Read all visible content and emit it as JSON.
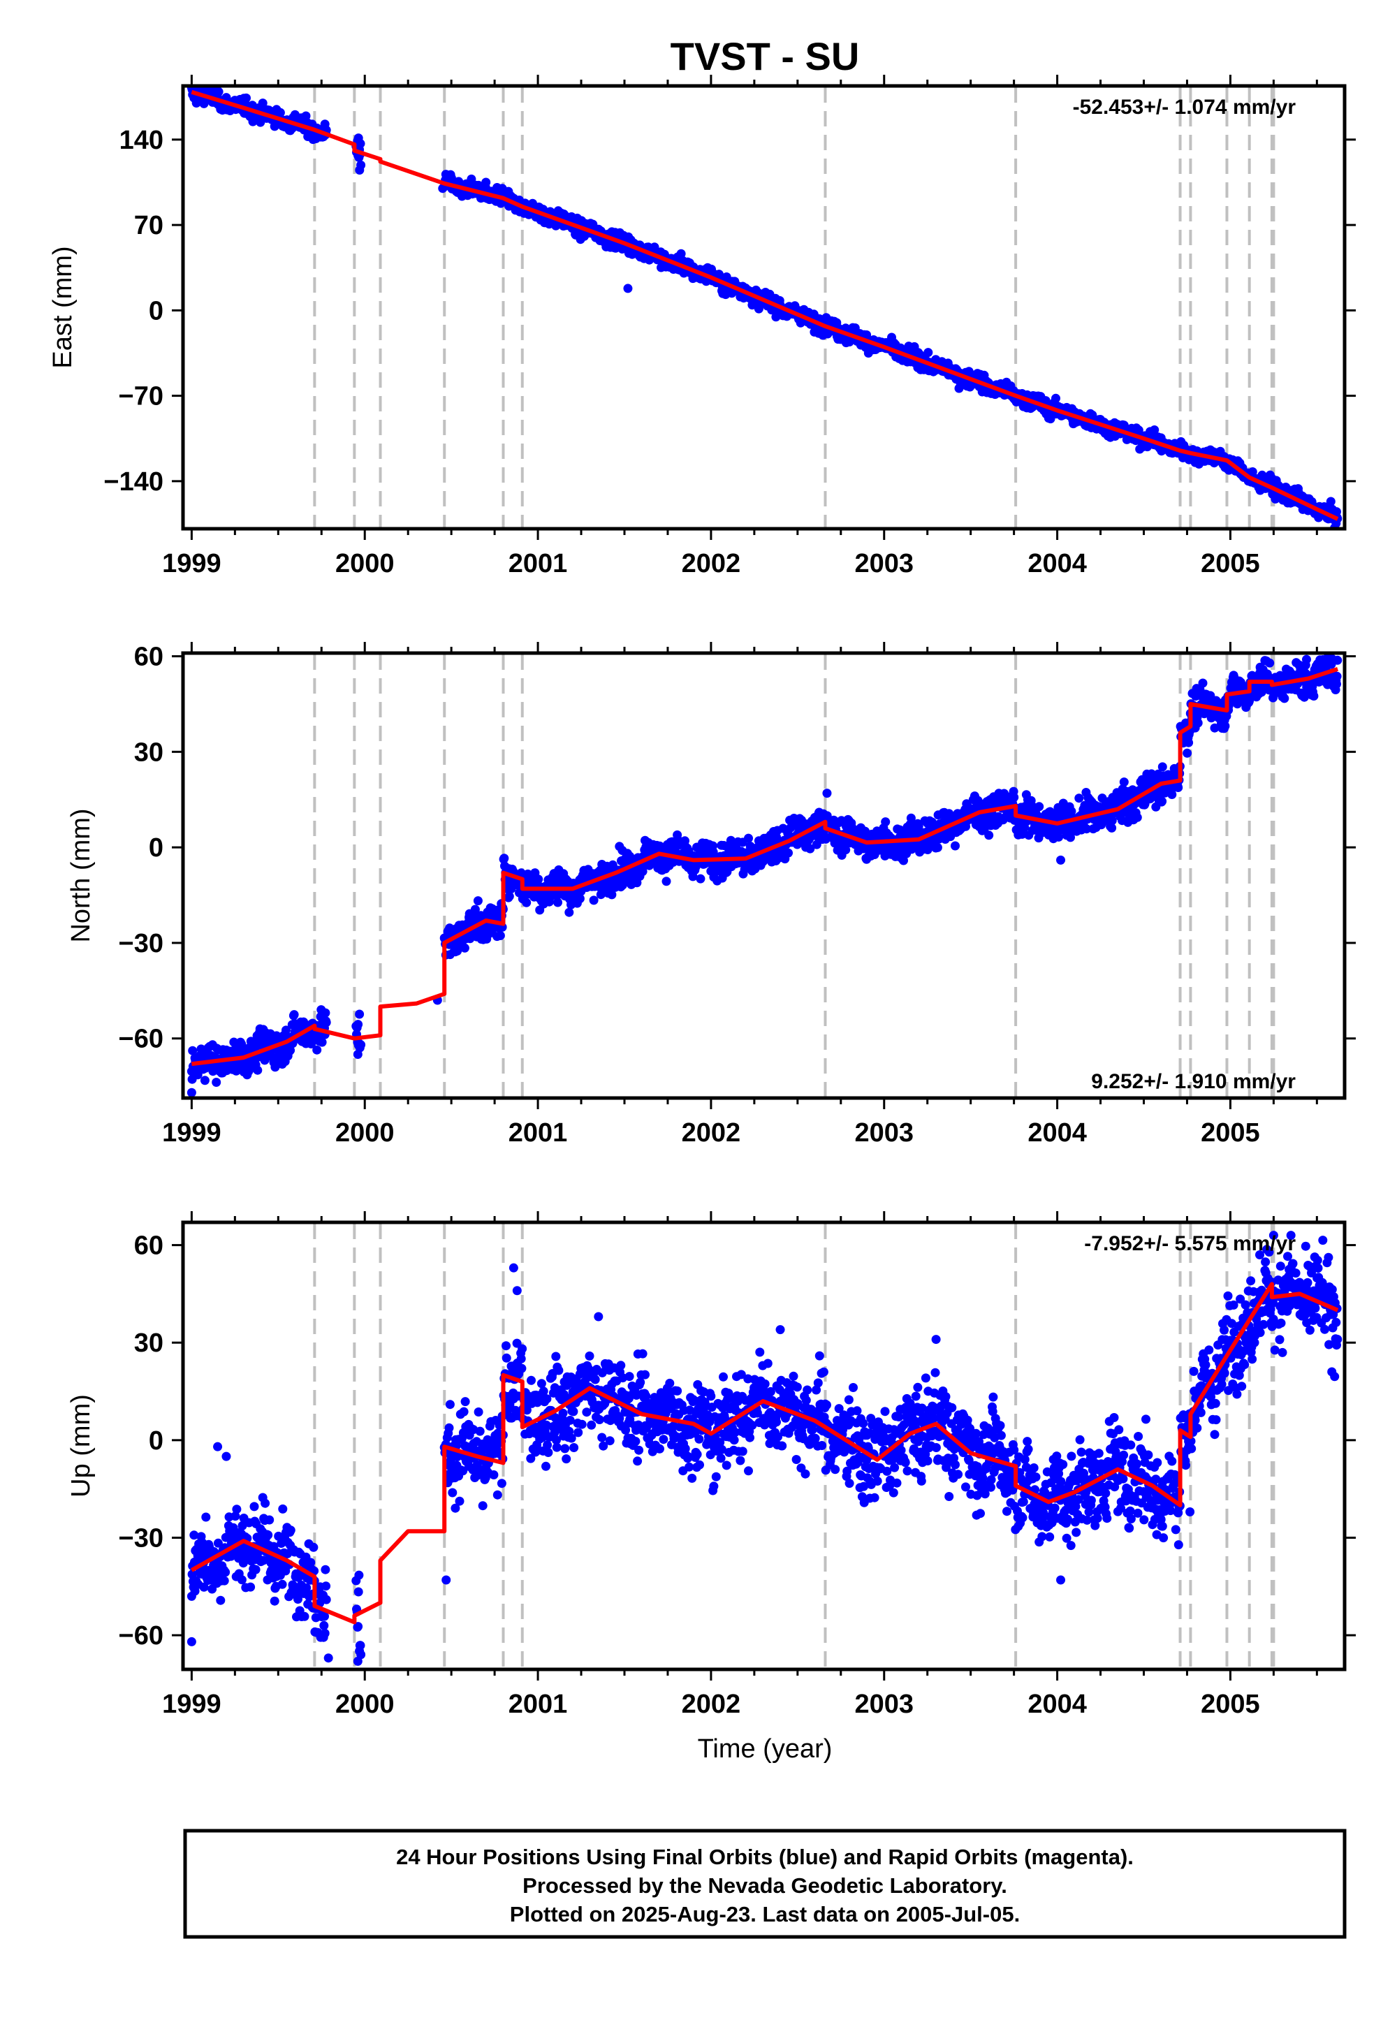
{
  "title": "TVST - SU",
  "x_axis_label": "Time (year)",
  "footer": {
    "line1": "24 Hour Positions Using Final Orbits (blue) and Rapid Orbits (magenta).",
    "line2": "Processed by the Nevada Geodetic Laboratory.",
    "line3": "Plotted on 2025-Aug-23. Last data on 2005-Jul-05."
  },
  "colors": {
    "data": "#0000ff",
    "model": "#ff0000",
    "event_line": "#c0c0c0",
    "frame": "#000000"
  },
  "chart_data": [
    {
      "type": "scatter",
      "panel": "east",
      "title": "TVST - SU",
      "xlabel": "",
      "ylabel": "East (mm)",
      "rate_text": "-52.453+/- 1.074 mm/yr",
      "rate_position": "top-right",
      "xlim": [
        1998.95,
        2005.66
      ],
      "ylim": [
        -179,
        184
      ],
      "xticks": [
        1999,
        2000,
        2001,
        2002,
        2003,
        2004,
        2005
      ],
      "yticks": [
        140,
        70,
        0,
        -70,
        -140
      ],
      "ytick_labels": [
        "140",
        "70",
        "0",
        "−70",
        "−140"
      ],
      "event_lines": [
        1999.71,
        1999.94,
        2000.09,
        2000.46,
        2000.8,
        2000.91,
        2002.66,
        2003.76,
        2004.71,
        2004.77,
        2004.98,
        2005.11,
        2005.24,
        2005.25
      ],
      "model": [
        [
          1999.0,
          179
        ],
        [
          1999.3,
          166
        ],
        [
          1999.71,
          148
        ],
        [
          1999.94,
          136
        ],
        [
          1999.94,
          131
        ],
        [
          2000.09,
          124
        ],
        [
          2000.09,
          122
        ],
        [
          2000.46,
          104
        ],
        [
          2000.8,
          92
        ],
        [
          2000.91,
          85
        ],
        [
          2001.5,
          55
        ],
        [
          2002.0,
          27
        ],
        [
          2002.66,
          -13
        ],
        [
          2003.0,
          -30
        ],
        [
          2003.76,
          -70
        ],
        [
          2004.0,
          -82
        ],
        [
          2004.5,
          -105
        ],
        [
          2004.71,
          -115
        ],
        [
          2004.77,
          -117
        ],
        [
          2004.98,
          -123
        ],
        [
          2005.11,
          -137
        ],
        [
          2005.25,
          -146
        ],
        [
          2005.5,
          -163
        ],
        [
          2005.62,
          -171
        ]
      ],
      "series": [
        {
          "name": "Final Orbits",
          "segments": [
            {
              "t0": 1999.0,
              "t1": 1999.78,
              "spread": 3.2,
              "jitter": 0
            },
            {
              "t0": 1999.95,
              "t1": 1999.98,
              "spread": 7,
              "jitter": 0
            },
            {
              "t0": 2000.46,
              "t1": 2005.62,
              "spread": 3.2,
              "jitter": 0
            }
          ],
          "outliers": [
            [
              1999.97,
              115
            ],
            [
              2000.45,
              100
            ],
            [
              2001.52,
              18
            ],
            [
              2000.7,
              105
            ],
            [
              2002.1,
              17
            ]
          ]
        }
      ]
    },
    {
      "type": "scatter",
      "panel": "north",
      "xlabel": "",
      "ylabel": "North (mm)",
      "rate_text": "9.252+/- 1.910 mm/yr",
      "rate_position": "bottom-right",
      "xlim": [
        1998.95,
        2005.66
      ],
      "ylim": [
        -78.7,
        61
      ],
      "xticks": [
        1999,
        2000,
        2001,
        2002,
        2003,
        2004,
        2005
      ],
      "yticks": [
        60,
        30,
        0,
        -30,
        -60
      ],
      "ytick_labels": [
        "60",
        "30",
        "0",
        "−30",
        "−60"
      ],
      "event_lines": [
        1999.71,
        1999.94,
        2000.09,
        2000.46,
        2000.8,
        2000.91,
        2002.66,
        2003.76,
        2004.71,
        2004.77,
        2004.98,
        2005.11,
        2005.24,
        2005.25
      ],
      "model": [
        [
          1999.0,
          -68
        ],
        [
          1999.3,
          -66
        ],
        [
          1999.55,
          -61
        ],
        [
          1999.71,
          -56
        ],
        [
          1999.71,
          -57
        ],
        [
          1999.94,
          -60
        ],
        [
          2000.09,
          -59
        ],
        [
          2000.09,
          -50
        ],
        [
          2000.3,
          -49
        ],
        [
          2000.46,
          -46
        ],
        [
          2000.46,
          -30
        ],
        [
          2000.7,
          -23
        ],
        [
          2000.8,
          -24
        ],
        [
          2000.8,
          -8
        ],
        [
          2000.91,
          -10
        ],
        [
          2000.91,
          -13
        ],
        [
          2001.2,
          -13
        ],
        [
          2001.45,
          -8
        ],
        [
          2001.7,
          -2
        ],
        [
          2001.9,
          -4
        ],
        [
          2002.2,
          -3.5
        ],
        [
          2002.45,
          2
        ],
        [
          2002.66,
          8
        ],
        [
          2002.66,
          6
        ],
        [
          2002.9,
          1.5
        ],
        [
          2003.2,
          2.5
        ],
        [
          2003.55,
          11
        ],
        [
          2003.76,
          13
        ],
        [
          2003.76,
          10
        ],
        [
          2004.0,
          7.5
        ],
        [
          2004.35,
          12
        ],
        [
          2004.6,
          20
        ],
        [
          2004.71,
          21
        ],
        [
          2004.71,
          36
        ],
        [
          2004.77,
          38
        ],
        [
          2004.77,
          45
        ],
        [
          2004.98,
          43
        ],
        [
          2004.98,
          48
        ],
        [
          2005.11,
          49
        ],
        [
          2005.11,
          52
        ],
        [
          2005.24,
          52
        ],
        [
          2005.24,
          51
        ],
        [
          2005.45,
          53
        ],
        [
          2005.62,
          56
        ]
      ],
      "series": [
        {
          "name": "Final Orbits",
          "segments": [
            {
              "t0": 1999.0,
              "t1": 1999.78,
              "spread": 2.6,
              "jitter": 0
            },
            {
              "t0": 1999.95,
              "t1": 1999.98,
              "spread": 3,
              "jitter": 0
            },
            {
              "t0": 2000.46,
              "t1": 2005.62,
              "spread": 2.6,
              "jitter": 0
            }
          ],
          "outliers": [
            [
              1999.0,
              -77
            ],
            [
              1999.96,
              -65
            ],
            [
              2000.42,
              -48
            ],
            [
              2004.02,
              -4
            ],
            [
              2002.67,
              17
            ],
            [
              2005.44,
              59
            ]
          ]
        }
      ]
    },
    {
      "type": "scatter",
      "panel": "up",
      "xlabel": "Time (year)",
      "ylabel": "Up (mm)",
      "rate_text": "-7.952+/- 5.575 mm/yr",
      "rate_position": "top-right",
      "xlim": [
        1998.95,
        2005.66
      ],
      "ylim": [
        -70.5,
        67
      ],
      "xticks": [
        1999,
        2000,
        2001,
        2002,
        2003,
        2004,
        2005
      ],
      "yticks": [
        60,
        30,
        0,
        -30,
        -60
      ],
      "ytick_labels": [
        "60",
        "30",
        "0",
        "−30",
        "−60"
      ],
      "event_lines": [
        1999.71,
        1999.94,
        2000.09,
        2000.46,
        2000.8,
        2000.91,
        2002.66,
        2003.76,
        2004.71,
        2004.77,
        2004.98,
        2005.11,
        2005.24,
        2005.25
      ],
      "model": [
        [
          1999.0,
          -40
        ],
        [
          1999.3,
          -31
        ],
        [
          1999.55,
          -37
        ],
        [
          1999.71,
          -42
        ],
        [
          1999.71,
          -51
        ],
        [
          1999.94,
          -56
        ],
        [
          1999.94,
          -54
        ],
        [
          2000.09,
          -50
        ],
        [
          2000.09,
          -37
        ],
        [
          2000.25,
          -28
        ],
        [
          2000.46,
          -28
        ],
        [
          2000.46,
          -2
        ],
        [
          2000.65,
          -5
        ],
        [
          2000.8,
          -7
        ],
        [
          2000.8,
          20
        ],
        [
          2000.91,
          18
        ],
        [
          2000.91,
          4
        ],
        [
          2001.1,
          9
        ],
        [
          2001.3,
          16
        ],
        [
          2001.6,
          8
        ],
        [
          2001.9,
          5
        ],
        [
          2002.0,
          2
        ],
        [
          2002.3,
          12
        ],
        [
          2002.6,
          6
        ],
        [
          2002.66,
          4
        ],
        [
          2002.96,
          -6
        ],
        [
          2003.15,
          2
        ],
        [
          2003.3,
          5
        ],
        [
          2003.5,
          -4
        ],
        [
          2003.76,
          -8
        ],
        [
          2003.76,
          -14
        ],
        [
          2003.95,
          -19
        ],
        [
          2004.1,
          -16
        ],
        [
          2004.35,
          -9
        ],
        [
          2004.55,
          -14
        ],
        [
          2004.71,
          -20
        ],
        [
          2004.71,
          3
        ],
        [
          2004.77,
          1
        ],
        [
          2004.77,
          8
        ],
        [
          2004.98,
          26
        ],
        [
          2005.11,
          37
        ],
        [
          2005.24,
          48
        ],
        [
          2005.24,
          44
        ],
        [
          2005.4,
          45
        ],
        [
          2005.62,
          40
        ]
      ],
      "series": [
        {
          "name": "Final Orbits",
          "segments": [
            {
              "t0": 1999.0,
              "t1": 1999.78,
              "spread": 6,
              "jitter": 0
            },
            {
              "t0": 1999.95,
              "t1": 1999.98,
              "spread": 8,
              "jitter": 0
            },
            {
              "t0": 2000.46,
              "t1": 2005.62,
              "spread": 6.5,
              "jitter": 0
            }
          ],
          "outliers": [
            [
              2000.86,
              53
            ],
            [
              2000.88,
              46
            ],
            [
              2001.35,
              38
            ],
            [
              2002.4,
              34
            ],
            [
              2003.3,
              31
            ],
            [
              2004.02,
              -43
            ],
            [
              1999.79,
              -67
            ],
            [
              1999.96,
              -68
            ],
            [
              1999.0,
              -62
            ],
            [
              1999.2,
              -5
            ],
            [
              2005.25,
              63
            ],
            [
              2005.35,
              63
            ],
            [
              1999.15,
              -2
            ],
            [
              2000.47,
              -43
            ]
          ]
        }
      ]
    }
  ]
}
